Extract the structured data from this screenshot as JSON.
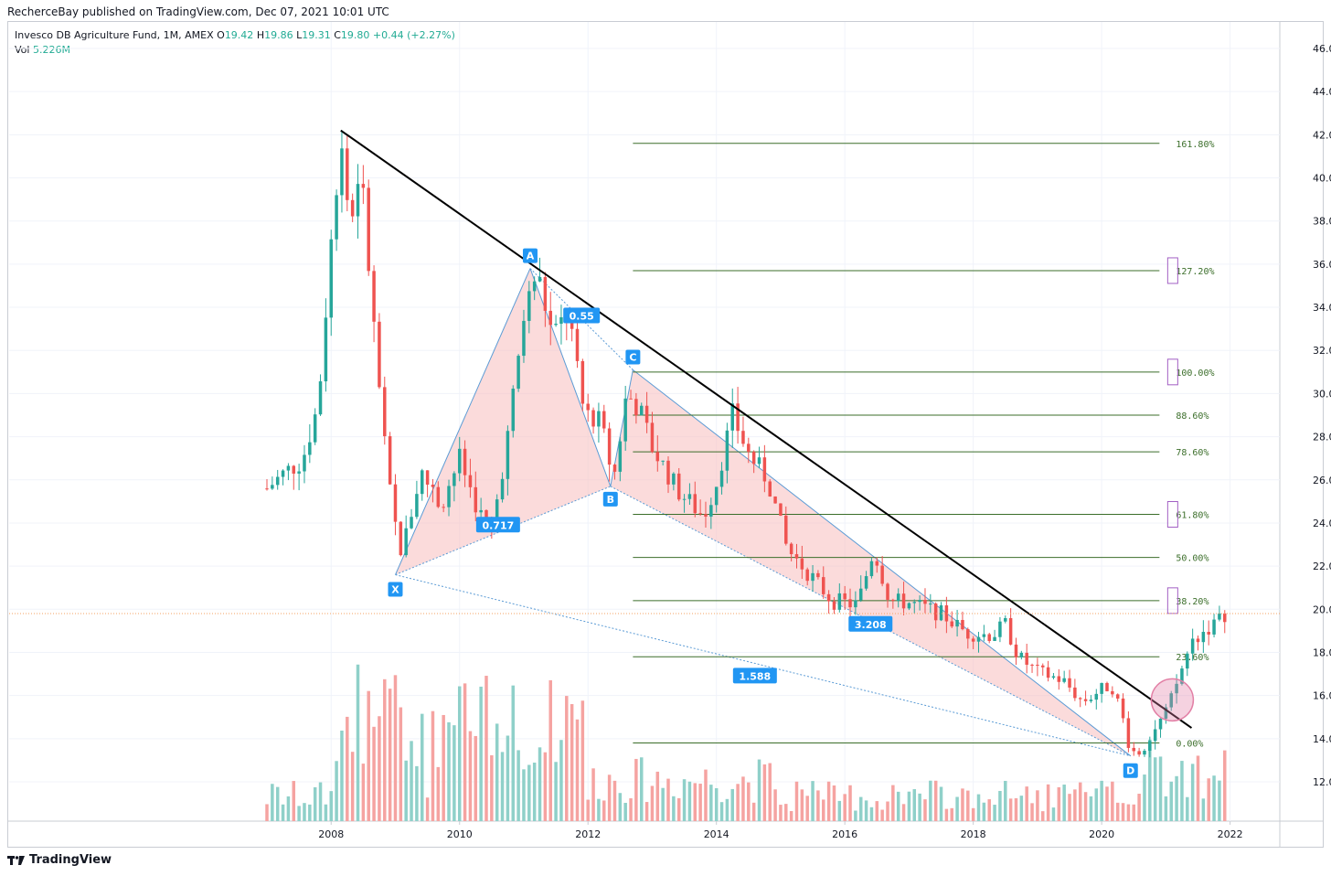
{
  "header": {
    "published": "RecherceBay published on TradingView.com, Dec 07, 2021 10:01 UTC"
  },
  "legend": {
    "symbol": "Invesco DB Agriculture Fund, 1M, AMEX",
    "o_label": "O",
    "o": "19.42",
    "h_label": "H",
    "h": "19.86",
    "l_label": "L",
    "l": "19.31",
    "c_label": "C",
    "c": "19.80",
    "change": "+0.44 (+2.27%)",
    "vol_label": "Vol",
    "vol": "5.226M"
  },
  "footer": {
    "logo_icon": "tradingview-logo-icon",
    "brand": "TradingView"
  },
  "colors": {
    "up": "#26a69a",
    "down": "#ef5350",
    "vol_up": "#8fd0c9",
    "vol_down": "#f5a3a1",
    "fib": "#3b6e2a",
    "harmonic_fill": "#f8bdbd",
    "harmonic_line": "#5b9bd5",
    "label_bg": "#2196f3",
    "trendline": "#000000",
    "circle": "#e27fa5",
    "box": "#a25fc4"
  },
  "chart_data": {
    "type": "candlestick",
    "title": "Invesco DB Agriculture Fund, 1M, AMEX",
    "x_axis": {
      "ticks": [
        "2008",
        "2010",
        "2012",
        "2014",
        "2016",
        "2018",
        "2020",
        "2022"
      ],
      "range": [
        2007.0,
        2022.8
      ]
    },
    "y_axis": {
      "ticks": [
        "12.00",
        "14.00",
        "16.00",
        "18.00",
        "20.00",
        "22.00",
        "24.00",
        "26.00",
        "28.00",
        "30.00",
        "32.00",
        "34.00",
        "36.00",
        "38.00",
        "40.00",
        "42.00",
        "44.00",
        "46.00"
      ],
      "range": [
        9.6,
        47.0
      ]
    },
    "last_price": 19.8,
    "price_path": [
      [
        2007.0,
        25.6
      ],
      [
        2007.3,
        26.4
      ],
      [
        2007.55,
        26.9
      ],
      [
        2007.8,
        29.5
      ],
      [
        2008.0,
        37.0
      ],
      [
        2008.15,
        42.0
      ],
      [
        2008.3,
        37.6
      ],
      [
        2008.45,
        40.8
      ],
      [
        2008.62,
        34.6
      ],
      [
        2008.8,
        28.5
      ],
      [
        2008.95,
        24.5
      ],
      [
        2009.1,
        22.6
      ],
      [
        2009.4,
        26.4
      ],
      [
        2009.7,
        24.8
      ],
      [
        2010.0,
        27.0
      ],
      [
        2010.3,
        24.5
      ],
      [
        2010.5,
        23.6
      ],
      [
        2010.75,
        28.0
      ],
      [
        2011.0,
        33.5
      ],
      [
        2011.2,
        35.7
      ],
      [
        2011.45,
        32.6
      ],
      [
        2011.7,
        33.8
      ],
      [
        2011.9,
        29.5
      ],
      [
        2012.2,
        28.6
      ],
      [
        2012.4,
        26.0
      ],
      [
        2012.6,
        30.0
      ],
      [
        2012.8,
        29.3
      ],
      [
        2013.0,
        27.5
      ],
      [
        2013.4,
        25.5
      ],
      [
        2013.8,
        24.3
      ],
      [
        2014.0,
        25.9
      ],
      [
        2014.25,
        29.0
      ],
      [
        2014.5,
        27.2
      ],
      [
        2014.8,
        26.0
      ],
      [
        2015.1,
        22.8
      ],
      [
        2015.4,
        21.8
      ],
      [
        2015.8,
        20.4
      ],
      [
        2016.2,
        20.2
      ],
      [
        2016.45,
        22.8
      ],
      [
        2016.7,
        20.4
      ],
      [
        2017.0,
        20.3
      ],
      [
        2017.5,
        19.8
      ],
      [
        2017.9,
        18.9
      ],
      [
        2018.3,
        18.8
      ],
      [
        2018.5,
        19.3
      ],
      [
        2018.7,
        17.8
      ],
      [
        2019.0,
        17.1
      ],
      [
        2019.4,
        16.7
      ],
      [
        2019.7,
        15.7
      ],
      [
        2020.0,
        16.3
      ],
      [
        2020.15,
        16.5
      ],
      [
        2020.3,
        15.3
      ],
      [
        2020.45,
        13.4
      ],
      [
        2020.6,
        13.4
      ],
      [
        2020.8,
        14.3
      ],
      [
        2021.0,
        15.2
      ],
      [
        2021.2,
        16.8
      ],
      [
        2021.4,
        18.5
      ],
      [
        2021.6,
        19.0
      ],
      [
        2021.8,
        19.4
      ],
      [
        2021.92,
        19.8
      ]
    ],
    "harmonic_pattern": {
      "points": [
        {
          "label": "X",
          "x": 2009.0,
          "y": 21.6
        },
        {
          "label": "A",
          "x": 2011.1,
          "y": 35.8
        },
        {
          "label": "B",
          "x": 2012.35,
          "y": 25.7
        },
        {
          "label": "C",
          "x": 2012.7,
          "y": 31.1
        },
        {
          "label": "D",
          "x": 2020.45,
          "y": 13.2
        }
      ],
      "ratios": [
        {
          "text": "0.717",
          "x": 2010.6,
          "y": 23.9
        },
        {
          "text": "0.55",
          "x": 2011.9,
          "y": 33.6
        },
        {
          "text": "3.208",
          "x": 2016.4,
          "y": 19.3
        },
        {
          "text": "1.588",
          "x": 2014.6,
          "y": 16.9
        }
      ]
    },
    "fibonacci": {
      "x_start": 2012.7,
      "x_end": 2020.9,
      "levels": [
        {
          "label": "161.80%",
          "y": 41.6
        },
        {
          "label": "127.20%",
          "y": 35.7
        },
        {
          "label": "100.00%",
          "y": 31.0
        },
        {
          "label": "88.60%",
          "y": 29.0
        },
        {
          "label": "78.60%",
          "y": 27.3
        },
        {
          "label": "61.80%",
          "y": 24.4
        },
        {
          "label": "50.00%",
          "y": 22.4
        },
        {
          "label": "38.20%",
          "y": 20.4
        },
        {
          "label": "23.60%",
          "y": 17.8
        },
        {
          "label": "0.00%",
          "y": 13.8
        }
      ],
      "highlighted": [
        "127.20%",
        "100.00%",
        "61.80%",
        "38.20%"
      ]
    },
    "trendline": {
      "from": [
        2008.15,
        42.2
      ],
      "to": [
        2021.4,
        14.5
      ]
    },
    "breakout_marker": {
      "x": 2021.1,
      "y": 15.8
    },
    "volume_note": "Volume histogram shown at bottom; no volume axis printed"
  }
}
